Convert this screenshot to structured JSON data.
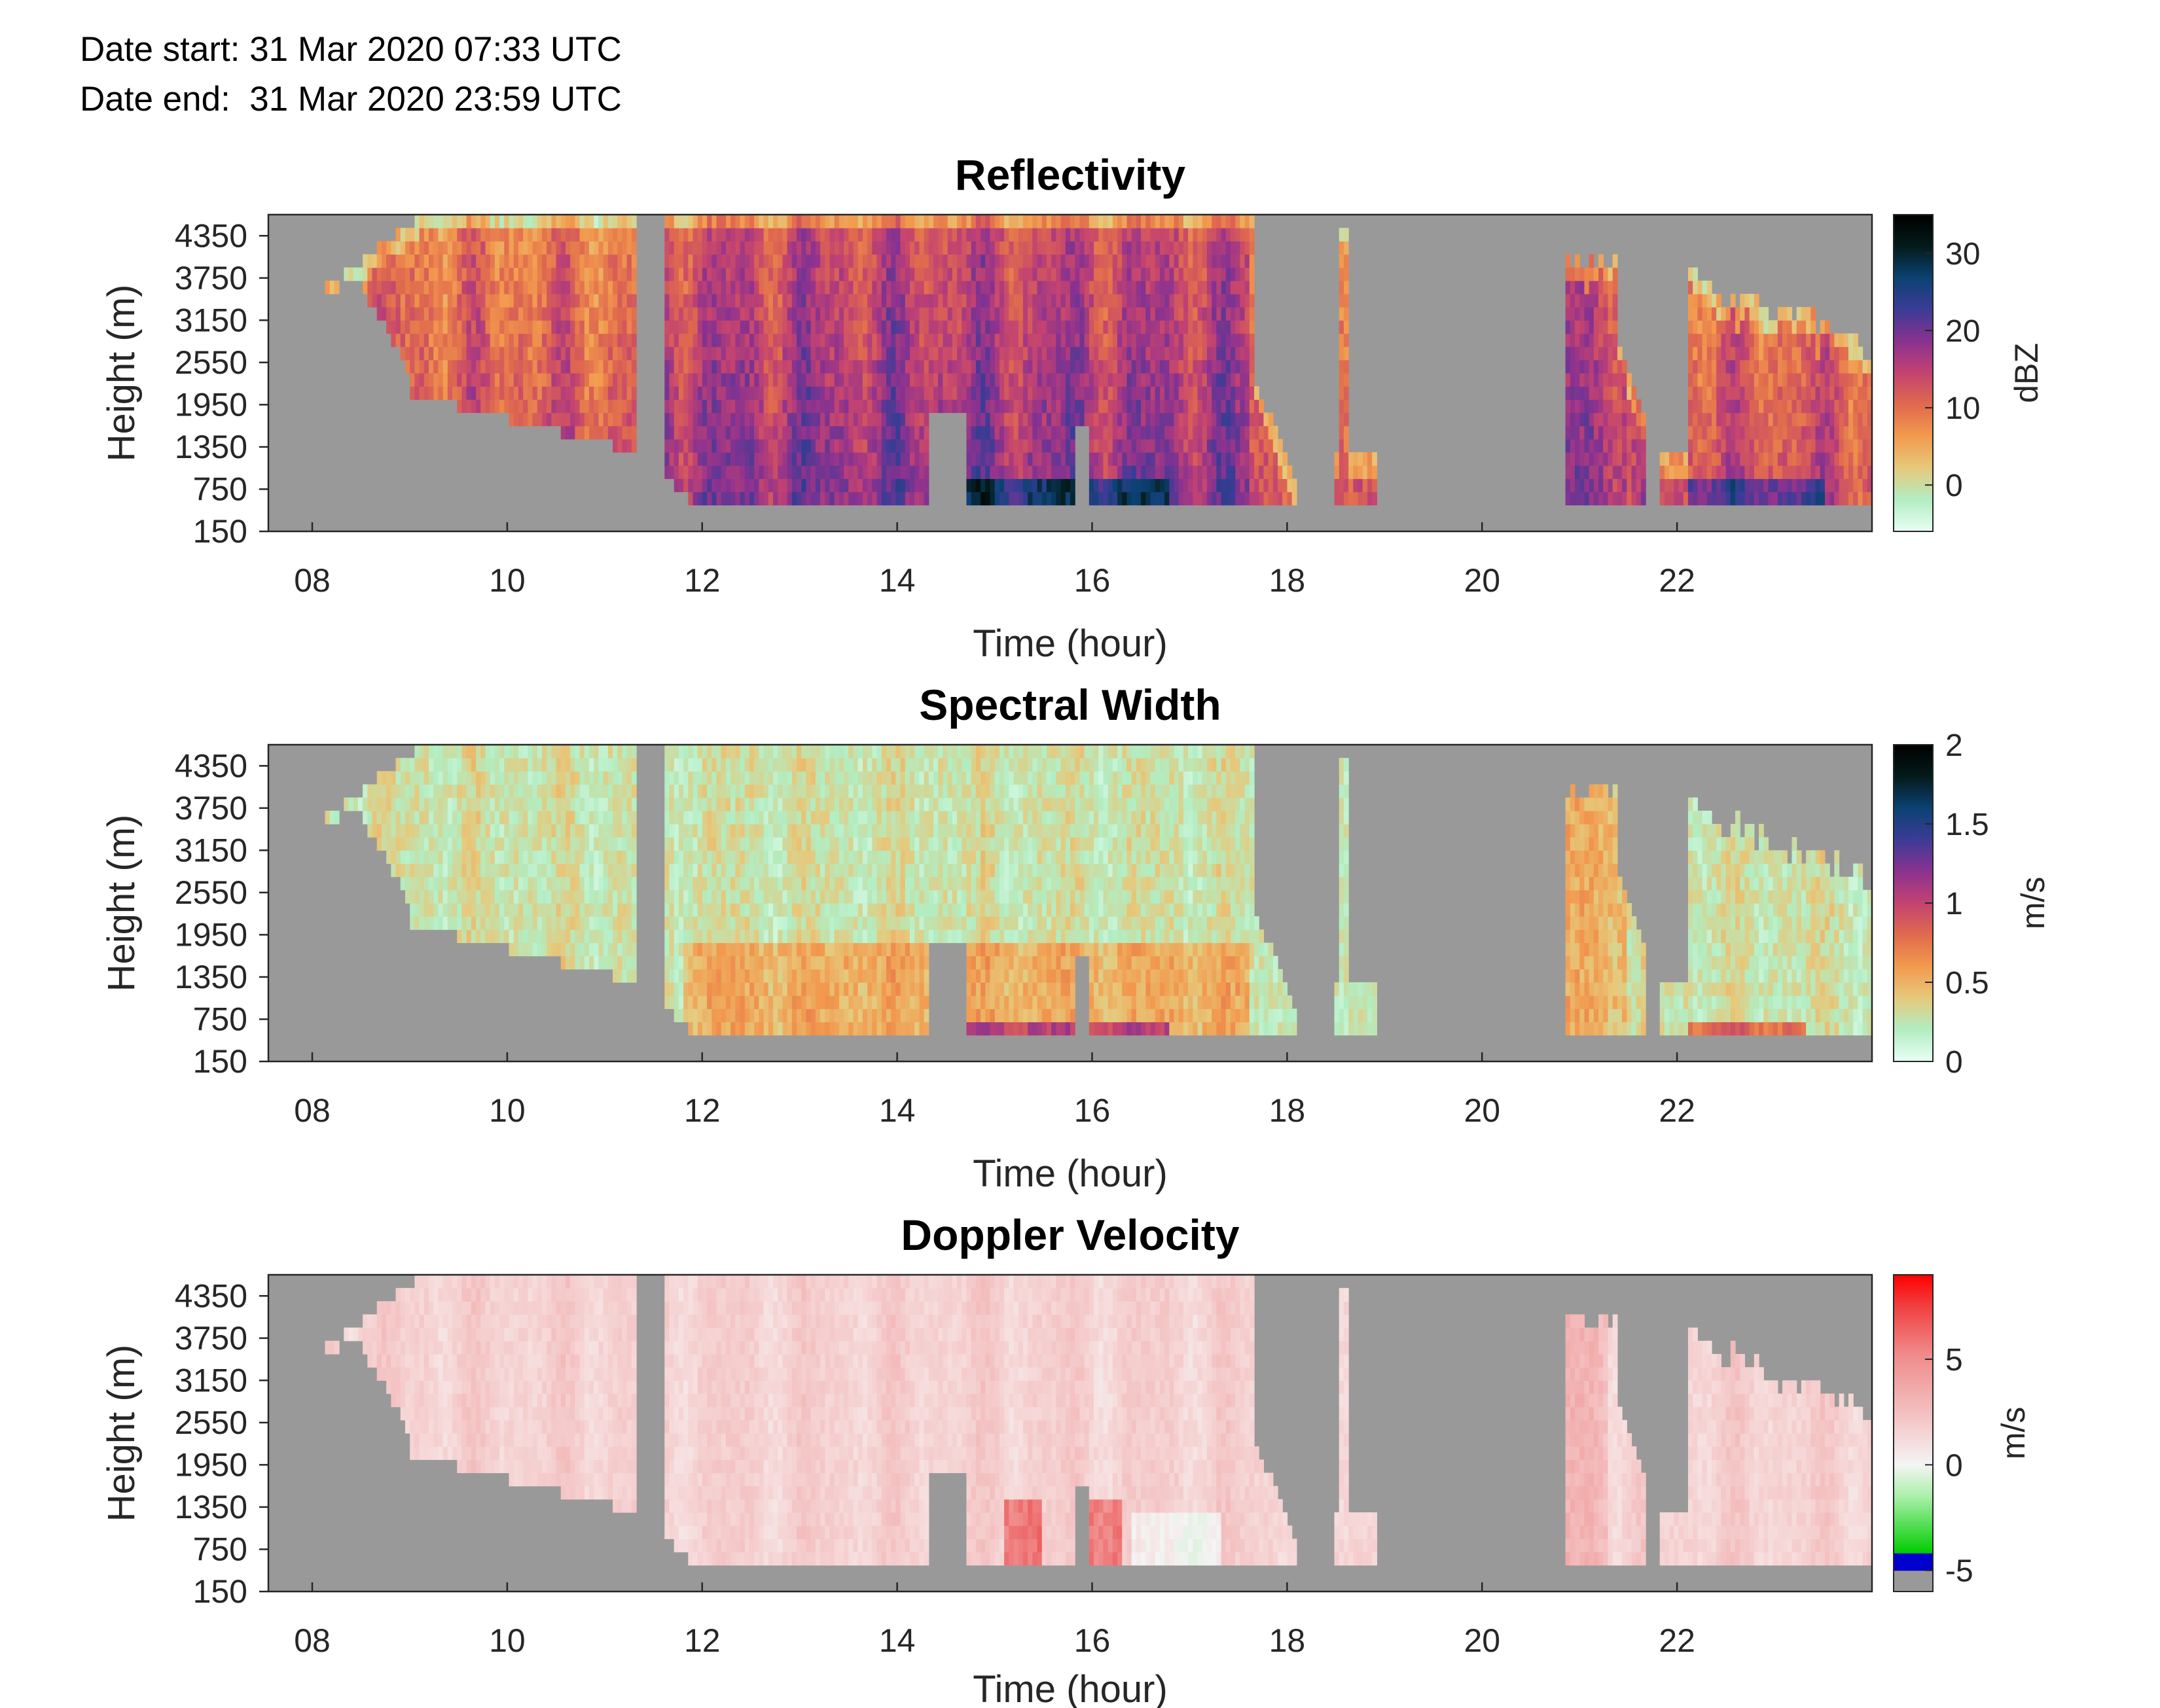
{
  "header": {
    "date_start": "Date start: 31 Mar 2020 07:33 UTC",
    "date_end": "Date end:  31 Mar 2020 23:59 UTC"
  },
  "chart_data": [
    {
      "type": "heatmap",
      "title": "Reflectivity",
      "xlabel": "Time (hour)",
      "ylabel": "Height (m)",
      "x_ticks": [
        "08",
        "10",
        "12",
        "14",
        "16",
        "18",
        "20",
        "22"
      ],
      "y_ticks": [
        "150",
        "750",
        "1350",
        "1950",
        "2550",
        "3150",
        "3750",
        "4350"
      ],
      "xlim": [
        7.55,
        24.0
      ],
      "ylim": [
        150,
        4650
      ],
      "colorbar": {
        "label": "dBZ",
        "ticks": [
          "0",
          "10",
          "20",
          "30"
        ],
        "range": [
          -6,
          35
        ],
        "colors": [
          "#e8fff4",
          "#b2edc2",
          "#e6c97c",
          "#f29a4e",
          "#e06a4e",
          "#c34370",
          "#8a3290",
          "#3b3c96",
          "#0b4272",
          "#041a1a",
          "#000000"
        ]
      },
      "background_color": "#999999"
    },
    {
      "type": "heatmap",
      "title": "Spectral Width",
      "xlabel": "Time (hour)",
      "ylabel": "Height (m)",
      "x_ticks": [
        "08",
        "10",
        "12",
        "14",
        "16",
        "18",
        "20",
        "22"
      ],
      "y_ticks": [
        "150",
        "750",
        "1350",
        "1950",
        "2550",
        "3150",
        "3750",
        "4350"
      ],
      "xlim": [
        7.55,
        24.0
      ],
      "ylim": [
        150,
        4650
      ],
      "colorbar": {
        "label": "m/s",
        "ticks": [
          "0",
          "0.5",
          "1",
          "1.5",
          "2"
        ],
        "range": [
          0,
          2
        ],
        "colors": [
          "#e8fff4",
          "#b2edc2",
          "#e6c97c",
          "#f29a4e",
          "#e06a4e",
          "#c34370",
          "#8a3290",
          "#3b3c96",
          "#0b4272",
          "#041a1a",
          "#000000"
        ]
      },
      "background_color": "#999999"
    },
    {
      "type": "heatmap",
      "title": "Doppler Velocity",
      "xlabel": "Time (hour)",
      "ylabel": "Height (m)",
      "x_ticks": [
        "08",
        "10",
        "12",
        "14",
        "16",
        "18",
        "20",
        "22"
      ],
      "y_ticks": [
        "150",
        "750",
        "1350",
        "1950",
        "2550",
        "3150",
        "3750",
        "4350"
      ],
      "xlim": [
        7.55,
        24.0
      ],
      "ylim": [
        150,
        4650
      ],
      "colorbar": {
        "label": "m/s",
        "ticks": [
          "-5",
          "0",
          "5"
        ],
        "range": [
          -6,
          9
        ],
        "colors": [
          "#999999",
          "#0000cc",
          "#00cc00",
          "#aaf0aa",
          "#f4f4f4",
          "#f4c4c4",
          "#f08a8a",
          "#f04040",
          "#ff0000"
        ]
      },
      "background_color": "#999999"
    }
  ]
}
